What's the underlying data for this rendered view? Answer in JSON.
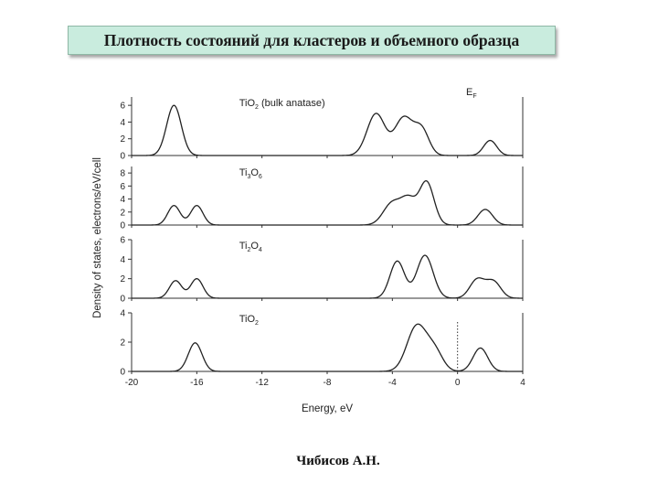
{
  "slide": {
    "title": "Плотность состояний для кластеров и объемного образца",
    "author": "Чибисов А.Н."
  },
  "chart_data": {
    "type": "line",
    "xlabel": "Energy, eV",
    "ylabel": "Density of states, electrons/eV/cell",
    "xlim": [
      -20,
      4
    ],
    "xticks": [
      -20,
      -16,
      -12,
      -8,
      -4,
      0,
      4
    ],
    "fermi_label": "E",
    "fermi_sub": "F",
    "fermi_level": 0,
    "line_color": "#222222",
    "panels": [
      {
        "label": "TiO",
        "label_sub": "2",
        "label_suffix": " (bulk anatase)",
        "ylim": [
          0,
          7
        ],
        "yticks": [
          0,
          2,
          4,
          6
        ],
        "peaks": [
          {
            "center": -17.4,
            "width": 0.45,
            "height": 6.0
          },
          {
            "center": -5.0,
            "width": 0.55,
            "height": 5.0
          },
          {
            "center": -3.3,
            "width": 0.55,
            "height": 4.5
          },
          {
            "center": -2.2,
            "width": 0.45,
            "height": 3.0
          },
          {
            "center": 2.0,
            "width": 0.4,
            "height": 1.8
          }
        ]
      },
      {
        "label": "Ti",
        "label_sub": "3",
        "label_mid": "O",
        "label_sub2": "6",
        "ylim": [
          0,
          9
        ],
        "yticks": [
          0,
          2,
          4,
          6,
          8
        ],
        "peaks": [
          {
            "center": -17.4,
            "width": 0.38,
            "height": 3.0
          },
          {
            "center": -16.0,
            "width": 0.38,
            "height": 3.0
          },
          {
            "center": -4.0,
            "width": 0.55,
            "height": 3.4
          },
          {
            "center": -3.0,
            "width": 0.45,
            "height": 3.6
          },
          {
            "center": -1.9,
            "width": 0.45,
            "height": 6.6
          },
          {
            "center": 1.7,
            "width": 0.45,
            "height": 2.4
          }
        ]
      },
      {
        "label": "Ti",
        "label_sub": "2",
        "label_mid": "O",
        "label_sub2": "4",
        "ylim": [
          0,
          6
        ],
        "yticks": [
          0,
          2,
          4,
          6
        ],
        "peaks": [
          {
            "center": -17.3,
            "width": 0.38,
            "height": 1.8
          },
          {
            "center": -16.0,
            "width": 0.38,
            "height": 2.0
          },
          {
            "center": -3.7,
            "width": 0.45,
            "height": 3.8
          },
          {
            "center": -2.0,
            "width": 0.5,
            "height": 4.4
          },
          {
            "center": 1.2,
            "width": 0.45,
            "height": 1.9
          },
          {
            "center": 2.2,
            "width": 0.45,
            "height": 1.7
          }
        ]
      },
      {
        "label": "TiO",
        "label_sub": "2",
        "ylim": [
          0,
          4
        ],
        "yticks": [
          0,
          2,
          4
        ],
        "fermi_line": true,
        "peaks": [
          {
            "center": -16.1,
            "width": 0.42,
            "height": 1.95
          },
          {
            "center": -2.5,
            "width": 0.6,
            "height": 3.1
          },
          {
            "center": -1.4,
            "width": 0.5,
            "height": 1.3
          },
          {
            "center": 1.4,
            "width": 0.45,
            "height": 1.6
          }
        ]
      }
    ]
  }
}
